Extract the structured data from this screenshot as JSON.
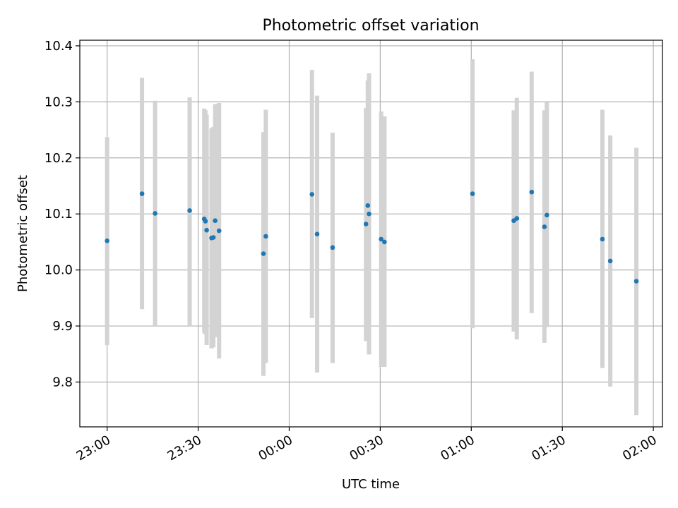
{
  "chart_data": {
    "type": "scatter",
    "title": "Photometric offset variation",
    "xlabel": "UTC time",
    "ylabel": "Photometric offset",
    "x_tick_labels": [
      "23:00",
      "23:30",
      "00:00",
      "00:30",
      "01:00",
      "01:30",
      "02:00"
    ],
    "x_tick_minutes": [
      0,
      30,
      60,
      90,
      120,
      150,
      180
    ],
    "y_ticks": [
      9.8,
      9.9,
      10.0,
      10.1,
      10.2,
      10.3,
      10.4
    ],
    "y_tick_labels": [
      "9.8",
      "9.9",
      "10.0",
      "10.1",
      "10.2",
      "10.3",
      "10.4"
    ],
    "xlim_minutes": [
      -9,
      183
    ],
    "ylim": [
      9.72,
      10.41
    ],
    "x_axis_origin_label": "23:00",
    "grid": true,
    "colors": {
      "point": "#1f77b4",
      "errorbar": "#d3d3d3",
      "grid": "#b0b0b0"
    },
    "points": [
      {
        "t": 0.0,
        "y": 10.052,
        "lo": 9.866,
        "hi": 10.237
      },
      {
        "t": 11.5,
        "y": 10.136,
        "lo": 9.93,
        "hi": 10.343
      },
      {
        "t": 15.8,
        "y": 10.101,
        "lo": 9.9,
        "hi": 10.302
      },
      {
        "t": 27.2,
        "y": 10.106,
        "lo": 9.9,
        "hi": 10.308
      },
      {
        "t": 32.0,
        "y": 10.091,
        "lo": 9.888,
        "hi": 10.288
      },
      {
        "t": 32.4,
        "y": 10.087,
        "lo": 9.885,
        "hi": 10.285
      },
      {
        "t": 32.8,
        "y": 10.071,
        "lo": 9.866,
        "hi": 10.277
      },
      {
        "t": 34.4,
        "y": 10.057,
        "lo": 9.86,
        "hi": 10.253
      },
      {
        "t": 35.0,
        "y": 10.058,
        "lo": 9.862,
        "hi": 10.255
      },
      {
        "t": 35.6,
        "y": 10.088,
        "lo": 9.88,
        "hi": 10.296
      },
      {
        "t": 36.9,
        "y": 10.07,
        "lo": 9.842,
        "hi": 10.298
      },
      {
        "t": 51.5,
        "y": 10.029,
        "lo": 9.811,
        "hi": 10.246
      },
      {
        "t": 52.3,
        "y": 10.06,
        "lo": 9.834,
        "hi": 10.286
      },
      {
        "t": 67.5,
        "y": 10.135,
        "lo": 9.914,
        "hi": 10.357
      },
      {
        "t": 69.2,
        "y": 10.064,
        "lo": 9.817,
        "hi": 10.311
      },
      {
        "t": 74.3,
        "y": 10.04,
        "lo": 9.834,
        "hi": 10.245
      },
      {
        "t": 85.3,
        "y": 10.082,
        "lo": 9.873,
        "hi": 10.289
      },
      {
        "t": 85.9,
        "y": 10.115,
        "lo": 9.892,
        "hi": 10.338
      },
      {
        "t": 86.3,
        "y": 10.1,
        "lo": 9.849,
        "hi": 10.351
      },
      {
        "t": 90.3,
        "y": 10.055,
        "lo": 9.827,
        "hi": 10.283
      },
      {
        "t": 91.4,
        "y": 10.05,
        "lo": 9.827,
        "hi": 10.274
      },
      {
        "t": 120.4,
        "y": 10.136,
        "lo": 9.896,
        "hi": 10.376
      },
      {
        "t": 134.0,
        "y": 10.088,
        "lo": 9.89,
        "hi": 10.285
      },
      {
        "t": 135.0,
        "y": 10.092,
        "lo": 9.876,
        "hi": 10.307
      },
      {
        "t": 139.9,
        "y": 10.139,
        "lo": 9.923,
        "hi": 10.354
      },
      {
        "t": 144.1,
        "y": 10.077,
        "lo": 9.87,
        "hi": 10.285
      },
      {
        "t": 144.9,
        "y": 10.098,
        "lo": 9.898,
        "hi": 10.299
      },
      {
        "t": 163.2,
        "y": 10.055,
        "lo": 9.825,
        "hi": 10.286
      },
      {
        "t": 165.8,
        "y": 10.016,
        "lo": 9.792,
        "hi": 10.24
      },
      {
        "t": 174.4,
        "y": 9.98,
        "lo": 9.741,
        "hi": 10.218
      }
    ]
  }
}
